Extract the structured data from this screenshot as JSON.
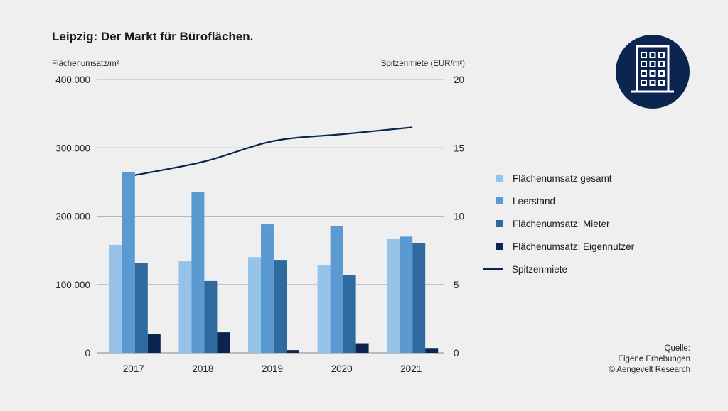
{
  "title": "Leipzig: Der Markt für Büroflächen.",
  "left_axis_title": "Flächenumsatz/m²",
  "right_axis_title": "Spitzenmiete (EUR/m²)",
  "source": {
    "l1": "Quelle:",
    "l2": "Eigene Erhebungen",
    "l3": "© Aengevelt Research"
  },
  "icon": "office-building-icon",
  "chart_data": {
    "type": "bar",
    "categories": [
      "2017",
      "2018",
      "2019",
      "2020",
      "2021"
    ],
    "series": [
      {
        "name": "Flächenumsatz gesamt",
        "color": "#96c3e9",
        "values": [
          158000,
          135000,
          140000,
          128000,
          167000
        ]
      },
      {
        "name": "Leerstand",
        "color": "#5b9ad0",
        "values": [
          265000,
          235000,
          188000,
          185000,
          170000
        ]
      },
      {
        "name": "Flächenumsatz: Mieter",
        "color": "#2e6a9e",
        "values": [
          131000,
          105000,
          136000,
          114000,
          160000
        ]
      },
      {
        "name": "Flächenumsatz: Eigennutzer",
        "color": "#0c2550",
        "values": [
          27000,
          30000,
          4000,
          14000,
          7000
        ]
      }
    ],
    "line_series": {
      "name": "Spitzenmiete",
      "color": "#0c2550",
      "axis": "right",
      "values": [
        13.0,
        14.0,
        15.5,
        16.0,
        16.5
      ]
    },
    "ylim_left": [
      0,
      400000
    ],
    "ylim_right": [
      0,
      20
    ],
    "yticks_left": [
      "0",
      "100.000",
      "200.000",
      "300.000",
      "400.000"
    ],
    "yticks_right": [
      "0",
      "5",
      "10",
      "15",
      "20"
    ],
    "grid": true,
    "legend": "right"
  }
}
